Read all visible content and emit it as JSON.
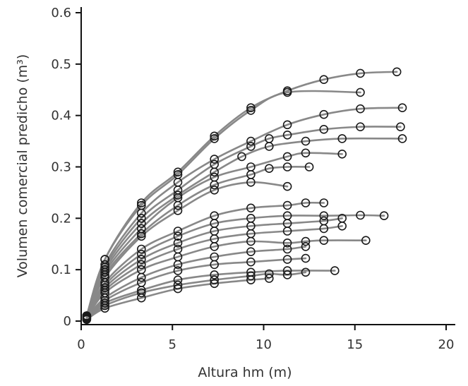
{
  "chart_data": {
    "type": "line",
    "xlabel": "Altura hm (m)",
    "ylabel": "Volumen comercial predicho (m³)",
    "xlim": [
      0,
      20
    ],
    "ylim": [
      0,
      0.6
    ],
    "xticks": [
      0,
      5,
      10,
      15,
      20
    ],
    "yticks": [
      0,
      0.1,
      0.2,
      0.3,
      0.4,
      0.5,
      0.6
    ],
    "xtick_labels": [
      "0",
      "5",
      "10",
      "15",
      "20"
    ],
    "ytick_labels": [
      "0",
      "0.1",
      "0.2",
      "0.3",
      "0.4",
      "0.5",
      "0.6"
    ],
    "grid": false,
    "curve_color": "#888888",
    "marker_color": "#1a1a1a",
    "series": [
      {
        "points": [
          [
            0.3,
            0.01
          ],
          [
            1.3,
            0.12
          ],
          [
            3.3,
            0.23
          ],
          [
            5.3,
            0.29
          ],
          [
            7.3,
            0.36
          ],
          [
            9.3,
            0.415
          ],
          [
            11.3,
            0.448
          ],
          [
            13.3,
            0.47
          ],
          [
            15.3,
            0.482
          ],
          [
            17.3,
            0.485
          ]
        ]
      },
      {
        "points": [
          [
            0.3,
            0.01
          ],
          [
            1.3,
            0.12
          ],
          [
            3.3,
            0.225
          ],
          [
            5.3,
            0.285
          ],
          [
            7.3,
            0.355
          ],
          [
            9.3,
            0.41
          ],
          [
            11.3,
            0.445
          ],
          [
            15.3,
            0.445
          ]
        ]
      },
      {
        "points": [
          [
            0.3,
            0.01
          ],
          [
            1.3,
            0.11
          ],
          [
            3.3,
            0.21
          ],
          [
            5.3,
            0.27
          ],
          [
            7.3,
            0.315
          ],
          [
            9.3,
            0.35
          ],
          [
            11.3,
            0.382
          ],
          [
            13.3,
            0.402
          ],
          [
            15.3,
            0.413
          ],
          [
            17.6,
            0.415
          ]
        ]
      },
      {
        "points": [
          [
            0.3,
            0.01
          ],
          [
            1.3,
            0.105
          ],
          [
            3.3,
            0.2
          ],
          [
            5.3,
            0.255
          ],
          [
            7.3,
            0.305
          ],
          [
            9.3,
            0.34
          ],
          [
            10.3,
            0.355
          ],
          [
            11.3,
            0.362
          ],
          [
            13.3,
            0.373
          ],
          [
            15.3,
            0.378
          ],
          [
            17.5,
            0.378
          ]
        ]
      },
      {
        "points": [
          [
            0.3,
            0.01
          ],
          [
            1.3,
            0.1
          ],
          [
            3.3,
            0.19
          ],
          [
            5.3,
            0.245
          ],
          [
            7.3,
            0.29
          ],
          [
            8.8,
            0.32
          ],
          [
            10.3,
            0.34
          ],
          [
            12.3,
            0.35
          ],
          [
            14.3,
            0.355
          ],
          [
            17.6,
            0.355
          ]
        ]
      },
      {
        "points": [
          [
            0.3,
            0.01
          ],
          [
            1.3,
            0.095
          ],
          [
            3.3,
            0.18
          ],
          [
            5.3,
            0.24
          ],
          [
            7.3,
            0.28
          ],
          [
            9.3,
            0.3
          ],
          [
            11.3,
            0.32
          ],
          [
            12.3,
            0.327
          ],
          [
            14.3,
            0.325
          ]
        ]
      },
      {
        "points": [
          [
            0.3,
            0.01
          ],
          [
            1.3,
            0.09
          ],
          [
            3.3,
            0.17
          ],
          [
            5.3,
            0.225
          ],
          [
            7.3,
            0.265
          ],
          [
            9.3,
            0.285
          ],
          [
            10.3,
            0.297
          ],
          [
            11.3,
            0.3
          ],
          [
            12.5,
            0.3
          ]
        ]
      },
      {
        "points": [
          [
            0.3,
            0.01
          ],
          [
            1.3,
            0.085
          ],
          [
            3.3,
            0.165
          ],
          [
            5.3,
            0.215
          ],
          [
            7.3,
            0.255
          ],
          [
            9.3,
            0.27
          ],
          [
            11.3,
            0.262
          ]
        ]
      },
      {
        "points": [
          [
            0.3,
            0.008
          ],
          [
            1.3,
            0.075
          ],
          [
            3.3,
            0.14
          ],
          [
            5.3,
            0.175
          ],
          [
            7.3,
            0.205
          ],
          [
            9.3,
            0.22
          ],
          [
            11.3,
            0.225
          ],
          [
            12.3,
            0.23
          ],
          [
            13.3,
            0.23
          ]
        ]
      },
      {
        "points": [
          [
            0.3,
            0.008
          ],
          [
            1.3,
            0.07
          ],
          [
            3.3,
            0.13
          ],
          [
            5.3,
            0.165
          ],
          [
            7.3,
            0.19
          ],
          [
            9.3,
            0.2
          ],
          [
            11.3,
            0.205
          ],
          [
            13.3,
            0.205
          ],
          [
            15.3,
            0.206
          ],
          [
            16.6,
            0.205
          ]
        ]
      },
      {
        "points": [
          [
            0.3,
            0.008
          ],
          [
            1.3,
            0.065
          ],
          [
            3.3,
            0.12
          ],
          [
            5.3,
            0.152
          ],
          [
            7.3,
            0.175
          ],
          [
            9.3,
            0.185
          ],
          [
            11.3,
            0.19
          ],
          [
            13.3,
            0.195
          ],
          [
            14.3,
            0.2
          ]
        ]
      },
      {
        "points": [
          [
            0.3,
            0.006
          ],
          [
            1.3,
            0.06
          ],
          [
            3.3,
            0.11
          ],
          [
            5.3,
            0.14
          ],
          [
            7.3,
            0.16
          ],
          [
            9.3,
            0.17
          ],
          [
            11.3,
            0.175
          ],
          [
            13.3,
            0.18
          ],
          [
            14.3,
            0.185
          ]
        ]
      },
      {
        "points": [
          [
            0.3,
            0.006
          ],
          [
            1.3,
            0.055
          ],
          [
            3.3,
            0.1
          ],
          [
            5.3,
            0.125
          ],
          [
            7.3,
            0.145
          ],
          [
            9.3,
            0.155
          ],
          [
            11.3,
            0.152
          ],
          [
            12.3,
            0.155
          ],
          [
            13.3,
            0.157
          ],
          [
            15.6,
            0.157
          ]
        ]
      },
      {
        "points": [
          [
            0.3,
            0.005
          ],
          [
            1.3,
            0.045
          ],
          [
            3.3,
            0.085
          ],
          [
            5.3,
            0.11
          ],
          [
            7.3,
            0.125
          ],
          [
            9.3,
            0.135
          ],
          [
            11.3,
            0.14
          ],
          [
            12.3,
            0.145
          ]
        ]
      },
      {
        "points": [
          [
            0.3,
            0.005
          ],
          [
            1.3,
            0.04
          ],
          [
            3.3,
            0.075
          ],
          [
            5.3,
            0.098
          ],
          [
            7.3,
            0.11
          ],
          [
            9.3,
            0.115
          ],
          [
            11.3,
            0.12
          ],
          [
            12.3,
            0.122
          ]
        ]
      },
      {
        "points": [
          [
            0.3,
            0.004
          ],
          [
            1.3,
            0.035
          ],
          [
            3.3,
            0.06
          ],
          [
            5.3,
            0.08
          ],
          [
            7.3,
            0.09
          ],
          [
            9.3,
            0.095
          ],
          [
            11.3,
            0.098
          ],
          [
            13.9,
            0.098
          ]
        ]
      },
      {
        "points": [
          [
            0.3,
            0.004
          ],
          [
            1.3,
            0.03
          ],
          [
            3.3,
            0.055
          ],
          [
            5.3,
            0.07
          ],
          [
            7.3,
            0.08
          ],
          [
            9.3,
            0.088
          ],
          [
            10.3,
            0.092
          ],
          [
            11.3,
            0.09
          ],
          [
            12.3,
            0.095
          ]
        ]
      },
      {
        "points": [
          [
            0.3,
            0.003
          ],
          [
            1.3,
            0.025
          ],
          [
            3.3,
            0.045
          ],
          [
            5.3,
            0.063
          ],
          [
            7.3,
            0.073
          ],
          [
            9.3,
            0.08
          ],
          [
            10.3,
            0.083
          ]
        ]
      }
    ]
  }
}
